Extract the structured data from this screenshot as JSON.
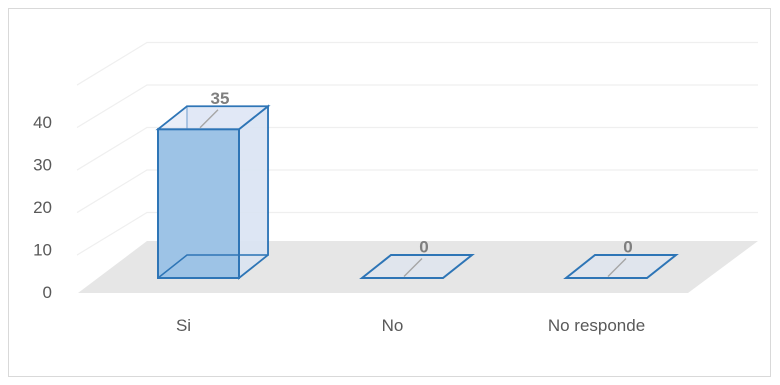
{
  "chart_data": {
    "type": "bar",
    "categories": [
      "Si",
      "No",
      "No responde"
    ],
    "values": [
      35,
      0,
      0
    ],
    "data_labels": [
      "35",
      "0",
      "0"
    ],
    "yticks": [
      "0",
      "10",
      "20",
      "30",
      "40"
    ],
    "ylim": [
      0,
      40
    ],
    "grid": true,
    "legend": "none",
    "colors": {
      "bar_front": "#9dc3e6",
      "bar_side": "#dae3f3",
      "bar_edge": "#2e75b6",
      "floor": "#e6e6e6",
      "grid": "#efefef",
      "label": "#7f7f7f"
    }
  }
}
